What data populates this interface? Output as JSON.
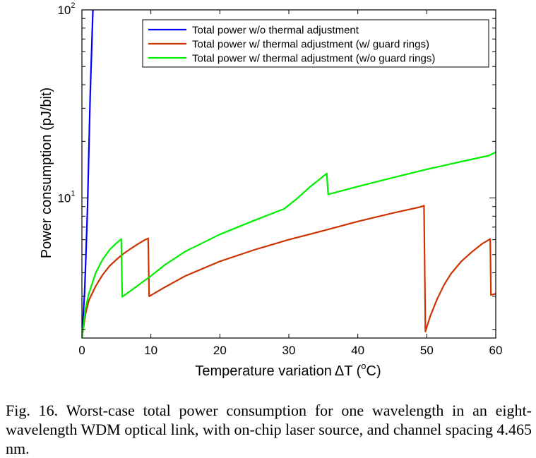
{
  "chart_data": {
    "type": "line",
    "xlabel": "Temperature variation",
    "xlabel_symbol": "ΔT",
    "xlabel_unit_open": " (",
    "xlabel_unit_sup": "o",
    "xlabel_unit_close": "C)",
    "ylabel": "Power consumption (pJ/bit)",
    "xlim": [
      0,
      60
    ],
    "ylim": [
      1.8,
      100
    ],
    "yscale": "log",
    "grid": false,
    "legend_position": "top-right",
    "x_ticks": [
      0,
      10,
      20,
      30,
      40,
      50,
      60
    ],
    "x_tick_labels": [
      "0",
      "10",
      "20",
      "30",
      "40",
      "50",
      "60"
    ],
    "y_major_ticks": [
      {
        "value": 10,
        "base": "10",
        "exp": "1"
      },
      {
        "value": 100,
        "base": "10",
        "exp": "2"
      }
    ],
    "y_minor_ticks": [
      2,
      3,
      4,
      5,
      6,
      7,
      8,
      9,
      20,
      30,
      40,
      50,
      60,
      70,
      80,
      90
    ],
    "series": [
      {
        "name": "Total power w/o thermal adjustment",
        "color": "#0000ff",
        "points": [
          [
            0,
            1.8
          ],
          [
            0.4,
            3.2
          ],
          [
            0.8,
            8.5
          ],
          [
            1.2,
            35
          ],
          [
            1.6,
            100
          ]
        ]
      },
      {
        "name": "Total power w/ thermal adjustment (w/ guard rings)",
        "color": "#cc3300",
        "points": [
          [
            0,
            1.8
          ],
          [
            0.5,
            2.4
          ],
          [
            1,
            2.85
          ],
          [
            2,
            3.4
          ],
          [
            3,
            3.9
          ],
          [
            4,
            4.35
          ],
          [
            5,
            4.7
          ],
          [
            6,
            5.05
          ],
          [
            7,
            5.35
          ],
          [
            8,
            5.65
          ],
          [
            9,
            5.95
          ],
          [
            9.6,
            6.1
          ],
          [
            9.75,
            3.0
          ],
          [
            12,
            3.35
          ],
          [
            15,
            3.85
          ],
          [
            20,
            4.6
          ],
          [
            25,
            5.3
          ],
          [
            30,
            6.0
          ],
          [
            35,
            6.7
          ],
          [
            40,
            7.5
          ],
          [
            45,
            8.3
          ],
          [
            49,
            8.95
          ],
          [
            49.6,
            9.1
          ],
          [
            49.8,
            1.95
          ],
          [
            50.5,
            2.35
          ],
          [
            51.5,
            2.9
          ],
          [
            52.5,
            3.45
          ],
          [
            53.5,
            3.95
          ],
          [
            55,
            4.6
          ],
          [
            56.5,
            5.15
          ],
          [
            58,
            5.7
          ],
          [
            59.2,
            6.05
          ],
          [
            59.3,
            3.05
          ],
          [
            60,
            3.1
          ]
        ]
      },
      {
        "name": "Total power w/ thermal adjustment (w/o guard rings)",
        "color": "#00ee00",
        "points": [
          [
            0,
            1.8
          ],
          [
            0.5,
            2.55
          ],
          [
            1,
            3.1
          ],
          [
            2,
            4.0
          ],
          [
            3,
            4.7
          ],
          [
            4,
            5.3
          ],
          [
            5,
            5.75
          ],
          [
            5.7,
            6.05
          ],
          [
            5.85,
            2.98
          ],
          [
            8,
            3.4
          ],
          [
            10,
            3.85
          ],
          [
            12,
            4.4
          ],
          [
            15,
            5.2
          ],
          [
            20,
            6.4
          ],
          [
            25,
            7.6
          ],
          [
            29.3,
            8.75
          ],
          [
            31,
            9.8
          ],
          [
            33,
            11.4
          ],
          [
            35.5,
            13.5
          ],
          [
            35.7,
            10.45
          ],
          [
            40,
            11.5
          ],
          [
            45,
            12.8
          ],
          [
            50,
            14.2
          ],
          [
            55,
            15.6
          ],
          [
            59,
            16.8
          ],
          [
            60,
            17.5
          ]
        ]
      }
    ]
  },
  "caption": {
    "text": "Fig. 16.   Worst-case total power consumption for one wavelength in an eight-wavelength WDM optical link, with on-chip laser source, and channel spacing 4.465 nm."
  }
}
